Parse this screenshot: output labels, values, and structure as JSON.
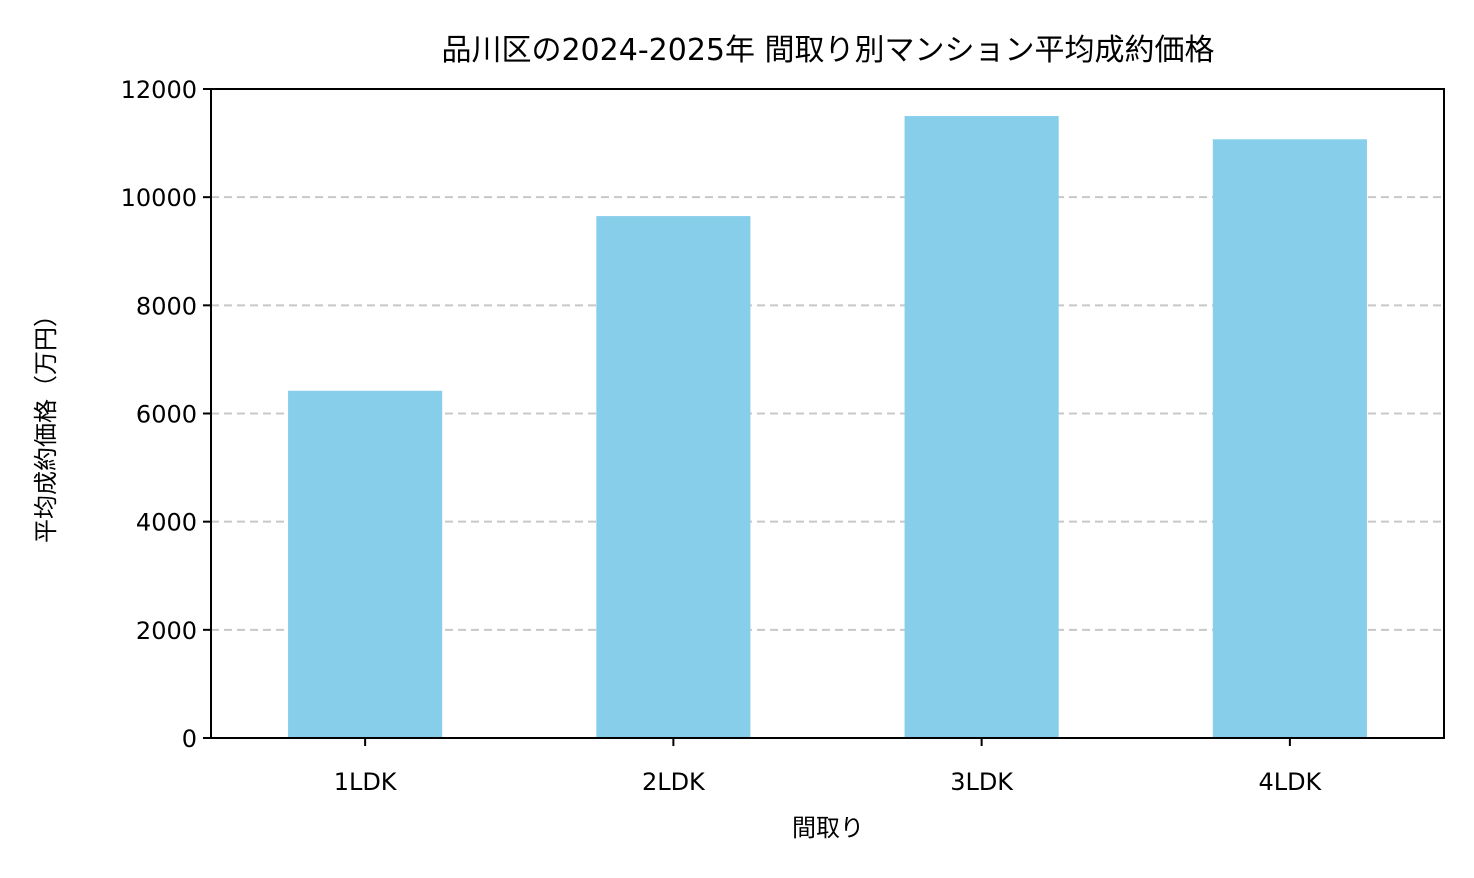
{
  "chart_data": {
    "type": "bar",
    "title": "品川区の2024-2025年 間取り別マンション平均成約価格",
    "xlabel": "間取り",
    "ylabel": "平均成約価格（万円）",
    "categories": [
      "1LDK",
      "2LDK",
      "3LDK",
      "4LDK"
    ],
    "values": [
      6420,
      9650,
      11500,
      11070
    ],
    "ylim": [
      0,
      12000
    ],
    "yticks": [
      0,
      2000,
      4000,
      6000,
      8000,
      10000,
      12000
    ],
    "grid": "y-dashed",
    "bar_color": "#87CEEB",
    "grid_color": "#c8c8c8"
  }
}
